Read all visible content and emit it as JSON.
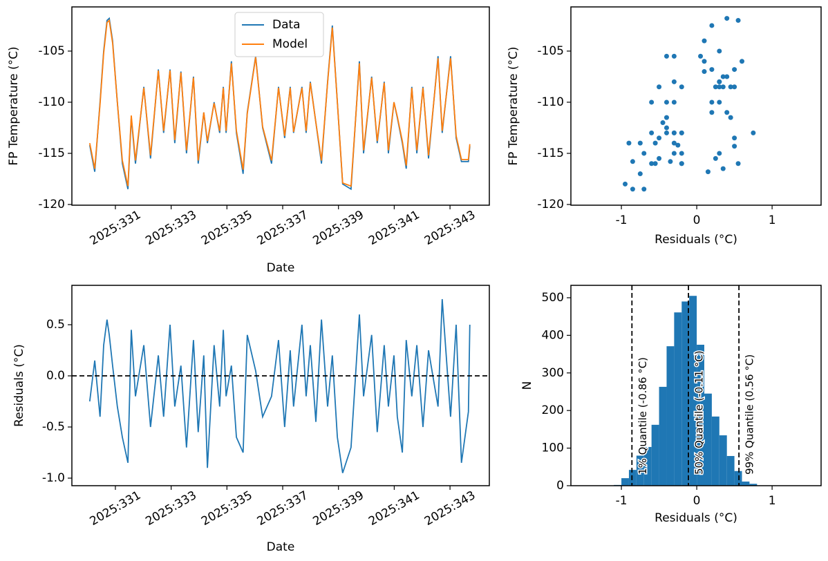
{
  "chart_data": [
    {
      "type": "line",
      "ylabel": "FP Temperature (°C)",
      "xlabel": "Date",
      "xlim": [
        329.44,
        344.41
      ],
      "ylim": [
        -120.07,
        -100.68
      ],
      "xticks": [
        {
          "value": 331,
          "label": "2025:331"
        },
        {
          "value": 333,
          "label": "2025:333"
        },
        {
          "value": 335,
          "label": "2025:335"
        },
        {
          "value": 337,
          "label": "2025:337"
        },
        {
          "value": 339,
          "label": "2025:339"
        },
        {
          "value": 341,
          "label": "2025:341"
        },
        {
          "value": 343,
          "label": "2025:343"
        }
      ],
      "yticks": [
        -120,
        -115,
        -110,
        -105
      ],
      "legend": "upper center",
      "x": [
        330.08,
        330.26,
        330.45,
        330.58,
        330.7,
        330.78,
        330.9,
        331.07,
        331.25,
        331.45,
        331.57,
        331.72,
        332.02,
        332.26,
        332.54,
        332.73,
        332.96,
        333.13,
        333.35,
        333.55,
        333.8,
        333.97,
        334.17,
        334.3,
        334.54,
        334.74,
        334.87,
        334.97,
        335.16,
        335.34,
        335.58,
        335.73,
        336.03,
        336.28,
        336.6,
        336.85,
        337.07,
        337.27,
        337.39,
        337.69,
        337.84,
        337.99,
        338.19,
        338.39,
        338.61,
        338.78,
        338.96,
        339.15,
        339.45,
        339.75,
        339.9,
        340.19,
        340.39,
        340.64,
        340.79,
        340.99,
        341.11,
        341.29,
        341.43,
        341.63,
        341.81,
        342.03,
        342.23,
        342.57,
        342.72,
        343.02,
        343.22,
        343.41,
        343.66,
        343.71
      ],
      "series": [
        {
          "name": "Data",
          "color": "#1f77b4",
          "values": [
            -114.2,
            -116.8,
            -110,
            -105,
            -102,
            -101.8,
            -104,
            -110,
            -116,
            -118.5,
            -111.5,
            -116,
            -108.5,
            -115.5,
            -106.8,
            -113,
            -106.8,
            -114,
            -107,
            -115,
            -107.5,
            -116,
            -111,
            -114,
            -110,
            -113,
            -108.5,
            -113,
            -106,
            -113,
            -117,
            -111,
            -105.5,
            -112.5,
            -116,
            -108.5,
            -113.5,
            -108.5,
            -113,
            -108.5,
            -113,
            -108,
            -112,
            -116,
            -108,
            -102.5,
            -110,
            -118,
            -118.5,
            -106,
            -115,
            -107.5,
            -114,
            -108,
            -115,
            -110,
            -111.5,
            -114,
            -116.5,
            -108.5,
            -115,
            -108.5,
            -115.5,
            -105.5,
            -113,
            -105.5,
            -113.5,
            -115.8,
            -115.8,
            -114.3
          ]
        },
        {
          "name": "Model",
          "color": "#ff7f0e",
          "values": [
            -114.0,
            -116.5,
            -110.2,
            -105.2,
            -102.2,
            -102.0,
            -104.2,
            -110.0,
            -115.7,
            -118.2,
            -111.3,
            -115.7,
            -108.6,
            -115.2,
            -106.9,
            -112.8,
            -106.9,
            -113.7,
            -107.1,
            -114.7,
            -107.6,
            -115.7,
            -111.0,
            -113.8,
            -110.1,
            -112.8,
            -108.6,
            -112.8,
            -106.2,
            -112.8,
            -116.6,
            -111.1,
            -105.6,
            -112.4,
            -115.7,
            -108.6,
            -113.3,
            -108.6,
            -112.9,
            -108.6,
            -112.8,
            -108.1,
            -112.0,
            -115.7,
            -108.1,
            -102.7,
            -110.0,
            -117.9,
            -118.2,
            -106.2,
            -114.7,
            -107.6,
            -113.8,
            -108.1,
            -114.7,
            -110.0,
            -111.4,
            -113.8,
            -116.2,
            -108.6,
            -114.7,
            -108.6,
            -115.2,
            -105.7,
            -112.8,
            -105.7,
            -113.3,
            -115.6,
            -115.6,
            -114.1
          ]
        }
      ]
    },
    {
      "type": "scatter",
      "ylabel": "FP Temperature (°C)",
      "xlabel": "Residuals (°C)",
      "xlim": [
        -1.67,
        1.65
      ],
      "ylim": [
        -120.07,
        -100.68
      ],
      "xticks": [
        -1,
        0,
        1
      ],
      "yticks": [
        -120,
        -115,
        -110,
        -105
      ],
      "color": "#1f77b4",
      "x": [
        -0.25,
        0.15,
        -0.4,
        0.3,
        0.55,
        0.4,
        0.1,
        -0.3,
        -0.6,
        -0.85,
        0.45,
        -0.2,
        0.3,
        -0.5,
        0.2,
        -0.4,
        0.5,
        -0.3,
        0.1,
        -0.7,
        0.35,
        -0.55,
        0.2,
        -0.9,
        0.3,
        -0.3,
        0.45,
        -0.2,
        0.1,
        -0.6,
        -0.75,
        0.4,
        0.05,
        -0.4,
        -0.2,
        0.35,
        -0.5,
        0.25,
        -0.3,
        0.5,
        -0.2,
        0.3,
        -0.45,
        0.55,
        -0.3,
        0.2,
        -0.6,
        -0.95,
        -0.7,
        0.6,
        -0.2,
        0.4,
        -0.55,
        0.3,
        -0.3,
        0.2,
        -0.4,
        -0.75,
        0.35,
        -0.2,
        0.3,
        -0.5,
        0.25,
        -0.3,
        0.75,
        -0.4,
        0.5,
        -0.85,
        -0.35,
        0.5
      ],
      "values": [
        -114.2,
        -116.8,
        -110,
        -105,
        -102,
        -101.8,
        -104,
        -110,
        -116,
        -118.5,
        -111.5,
        -116,
        -108.5,
        -115.5,
        -106.8,
        -113,
        -106.8,
        -114,
        -107,
        -115,
        -107.5,
        -116,
        -111,
        -114,
        -110,
        -113,
        -108.5,
        -113,
        -106,
        -113,
        -117,
        -111,
        -105.5,
        -112.5,
        -116,
        -108.5,
        -113.5,
        -108.5,
        -113,
        -108.5,
        -113,
        -108,
        -112,
        -116,
        -108,
        -102.5,
        -110,
        -118,
        -118.5,
        -106,
        -115,
        -107.5,
        -114,
        -108,
        -115,
        -110,
        -111.5,
        -114,
        -116.5,
        -108.5,
        -115,
        -108.5,
        -115.5,
        -105.5,
        -113,
        -105.5,
        -113.5,
        -115.8,
        -115.8,
        -114.3
      ]
    },
    {
      "type": "line",
      "ylabel": "Residuals (°C)",
      "xlabel": "Date",
      "xlim": [
        329.44,
        344.41
      ],
      "ylim": [
        -1.074,
        0.885
      ],
      "xticks": [
        {
          "value": 331,
          "label": "2025:331"
        },
        {
          "value": 333,
          "label": "2025:333"
        },
        {
          "value": 335,
          "label": "2025:335"
        },
        {
          "value": 337,
          "label": "2025:337"
        },
        {
          "value": 339,
          "label": "2025:339"
        },
        {
          "value": 341,
          "label": "2025:341"
        },
        {
          "value": 343,
          "label": "2025:343"
        }
      ],
      "yticks": [
        {
          "value": -1.0,
          "label": "-1.0"
        },
        -0.5,
        {
          "value": 0.0,
          "label": "0.0"
        },
        0.5
      ],
      "hlines": [
        0
      ],
      "x": [
        330.08,
        330.26,
        330.45,
        330.58,
        330.7,
        330.78,
        330.9,
        331.07,
        331.25,
        331.45,
        331.57,
        331.72,
        332.02,
        332.26,
        332.54,
        332.73,
        332.96,
        333.13,
        333.35,
        333.55,
        333.8,
        333.97,
        334.17,
        334.3,
        334.54,
        334.74,
        334.87,
        334.97,
        335.16,
        335.34,
        335.58,
        335.73,
        336.03,
        336.28,
        336.6,
        336.85,
        337.07,
        337.27,
        337.39,
        337.69,
        337.84,
        337.99,
        338.19,
        338.39,
        338.61,
        338.78,
        338.96,
        339.15,
        339.45,
        339.75,
        339.9,
        340.19,
        340.39,
        340.64,
        340.79,
        340.99,
        341.11,
        341.29,
        341.43,
        341.63,
        341.81,
        342.03,
        342.23,
        342.57,
        342.72,
        343.02,
        343.22,
        343.41,
        343.66,
        343.71
      ],
      "series": [
        {
          "color": "#1f77b4",
          "values": [
            -0.25,
            0.15,
            -0.4,
            0.3,
            0.55,
            0.4,
            0.1,
            -0.3,
            -0.6,
            -0.85,
            0.45,
            -0.2,
            0.3,
            -0.5,
            0.2,
            -0.4,
            0.5,
            -0.3,
            0.1,
            -0.7,
            0.35,
            -0.55,
            0.2,
            -0.9,
            0.3,
            -0.3,
            0.45,
            -0.2,
            0.1,
            -0.6,
            -0.75,
            0.4,
            0.05,
            -0.4,
            -0.2,
            0.35,
            -0.5,
            0.25,
            -0.3,
            0.5,
            -0.2,
            0.3,
            -0.45,
            0.55,
            -0.3,
            0.2,
            -0.6,
            -0.95,
            -0.7,
            0.6,
            -0.2,
            0.4,
            -0.55,
            0.3,
            -0.3,
            0.2,
            -0.4,
            -0.75,
            0.35,
            -0.2,
            0.3,
            -0.5,
            0.25,
            -0.3,
            0.75,
            -0.4,
            0.5,
            -0.85,
            -0.35,
            0.5
          ]
        }
      ]
    },
    {
      "type": "histogram",
      "ylabel": "N",
      "xlabel": "Residuals (°C)",
      "xlim": [
        -1.67,
        1.65
      ],
      "ylim": [
        0,
        533
      ],
      "xticks": [
        -1,
        0,
        1
      ],
      "yticks": [
        0,
        100,
        200,
        300,
        400,
        500
      ],
      "color": "#1f77b4",
      "bins": [
        -1.1,
        -1.0,
        -0.9,
        -0.8,
        -0.7,
        -0.6,
        -0.5,
        -0.4,
        -0.3,
        -0.2,
        -0.1,
        0.0,
        0.1,
        0.2,
        0.3,
        0.4,
        0.5,
        0.6,
        0.7,
        0.8
      ],
      "values": [
        2,
        20,
        42,
        80,
        103,
        162,
        263,
        371,
        461,
        490,
        505,
        375,
        245,
        184,
        134,
        79,
        39,
        11,
        5
      ],
      "vlines": [
        {
          "x": -0.86,
          "label": "1% Quantile (-0.86 °C)"
        },
        {
          "x": -0.11,
          "label": "50% Quantile (-0.11 °C)"
        },
        {
          "x": 0.56,
          "label": "99% Quantile (0.56 °C)"
        }
      ]
    }
  ]
}
